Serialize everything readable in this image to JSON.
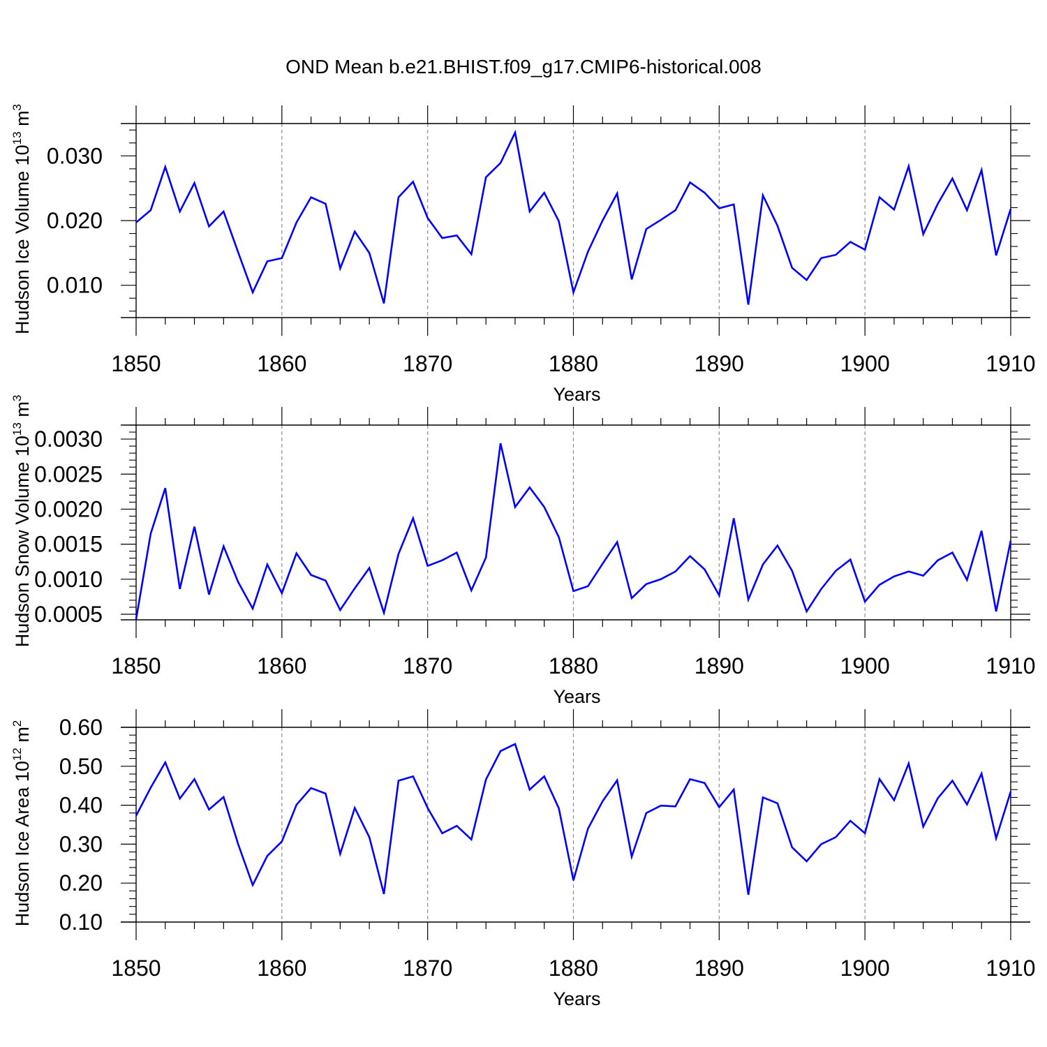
{
  "title": "OND Mean b.e21.BHIST.f09_g17.CMIP6-historical.008",
  "colors": {
    "line": "#0000ff",
    "frame": "#000000",
    "grid": "#8c8c8c"
  },
  "chart_data": [
    {
      "type": "line",
      "title": "",
      "xlabel": "Years",
      "ylabel": "Hudson Ice Volume 10",
      "ylabel_exp": "13",
      "ylabel_unit": " m",
      "ylabel_unit_exp": "3",
      "xlim": [
        1850,
        1910
      ],
      "ylim": [
        0.005,
        0.035
      ],
      "x_ticks": [
        1850,
        1860,
        1870,
        1880,
        1890,
        1900,
        1910
      ],
      "x_tick_labels": [
        "1850",
        "1860",
        "1870",
        "1880",
        "1890",
        "1900",
        "1910"
      ],
      "y_ticks": [
        0.01,
        0.02,
        0.03
      ],
      "y_tick_labels": [
        "0.010",
        "0.020",
        "0.030"
      ],
      "y_minor_step": 0.002,
      "grid": "x-dashed",
      "series": [
        {
          "name": "Hudson Ice Volume",
          "color": "#0000ff",
          "x": [
            1850,
            1851,
            1852,
            1853,
            1854,
            1855,
            1856,
            1857,
            1858,
            1859,
            1860,
            1861,
            1862,
            1863,
            1864,
            1865,
            1866,
            1867,
            1868,
            1869,
            1870,
            1871,
            1872,
            1873,
            1874,
            1875,
            1876,
            1877,
            1878,
            1879,
            1880,
            1881,
            1882,
            1883,
            1884,
            1885,
            1886,
            1887,
            1888,
            1889,
            1890,
            1891,
            1892,
            1893,
            1894,
            1895,
            1896,
            1897,
            1898,
            1899,
            1900,
            1901,
            1902,
            1903,
            1904,
            1905,
            1906,
            1907,
            1908,
            1909,
            1910
          ],
          "values": [
            0.0197,
            0.0216,
            0.0283,
            0.0214,
            0.0258,
            0.0191,
            0.0214,
            0.0151,
            0.0089,
            0.0137,
            0.0142,
            0.0197,
            0.0236,
            0.0226,
            0.0126,
            0.0183,
            0.015,
            0.0072,
            0.0236,
            0.026,
            0.0204,
            0.0173,
            0.0177,
            0.0148,
            0.0267,
            0.0289,
            0.0336,
            0.0214,
            0.0243,
            0.0199,
            0.0089,
            0.0152,
            0.02,
            0.0242,
            0.0109,
            0.0187,
            0.0201,
            0.0216,
            0.0259,
            0.0243,
            0.0219,
            0.0225,
            0.007,
            0.0239,
            0.0192,
            0.0127,
            0.0108,
            0.0142,
            0.0147,
            0.0167,
            0.0155,
            0.0236,
            0.0217,
            0.0284,
            0.0179,
            0.0226,
            0.0265,
            0.0216,
            0.0278,
            0.0146,
            0.0218
          ]
        }
      ]
    },
    {
      "type": "line",
      "title": "",
      "xlabel": "Years",
      "ylabel": "Hudson Snow Volume 10",
      "ylabel_exp": "13",
      "ylabel_unit": " m",
      "ylabel_unit_exp": "3",
      "xlim": [
        1850,
        1910
      ],
      "ylim": [
        0.00042,
        0.0032
      ],
      "x_ticks": [
        1850,
        1860,
        1870,
        1880,
        1890,
        1900,
        1910
      ],
      "x_tick_labels": [
        "1850",
        "1860",
        "1870",
        "1880",
        "1890",
        "1900",
        "1910"
      ],
      "y_ticks": [
        0.0005,
        0.001,
        0.0015,
        0.002,
        0.0025,
        0.003
      ],
      "y_tick_labels": [
        "0.0005",
        "0.0010",
        "0.0015",
        "0.0020",
        "0.0025",
        "0.0030"
      ],
      "y_minor_step": 0.0001,
      "grid": "x-dashed",
      "series": [
        {
          "name": "Hudson Snow Volume",
          "color": "#0000ff",
          "x": [
            1850,
            1851,
            1852,
            1853,
            1854,
            1855,
            1856,
            1857,
            1858,
            1859,
            1860,
            1861,
            1862,
            1863,
            1864,
            1865,
            1866,
            1867,
            1868,
            1869,
            1870,
            1871,
            1872,
            1873,
            1874,
            1875,
            1876,
            1877,
            1878,
            1879,
            1880,
            1881,
            1882,
            1883,
            1884,
            1885,
            1886,
            1887,
            1888,
            1889,
            1890,
            1891,
            1892,
            1893,
            1894,
            1895,
            1896,
            1897,
            1898,
            1899,
            1900,
            1901,
            1902,
            1903,
            1904,
            1905,
            1906,
            1907,
            1908,
            1909,
            1910
          ],
          "values": [
            0.00043,
            0.00165,
            0.0023,
            0.00086,
            0.00175,
            0.00078,
            0.00147,
            0.00096,
            0.00058,
            0.00121,
            0.0008,
            0.00137,
            0.00106,
            0.00098,
            0.00056,
            0.00087,
            0.00116,
            0.00052,
            0.00136,
            0.00187,
            0.00119,
            0.00127,
            0.00138,
            0.00084,
            0.00131,
            0.00294,
            0.00203,
            0.00231,
            0.00203,
            0.0016,
            0.00083,
            0.0009,
            0.00122,
            0.00153,
            0.00073,
            0.00093,
            0.001,
            0.00111,
            0.00133,
            0.00114,
            0.00077,
            0.00187,
            0.00071,
            0.00121,
            0.00148,
            0.00112,
            0.00054,
            0.00086,
            0.00112,
            0.00128,
            0.00068,
            0.00092,
            0.00104,
            0.00111,
            0.00105,
            0.00127,
            0.00138,
            0.00099,
            0.00169,
            0.00054,
            0.00155
          ]
        }
      ]
    },
    {
      "type": "line",
      "title": "",
      "xlabel": "Years",
      "ylabel": "Hudson Ice Area 10",
      "ylabel_exp": "12",
      "ylabel_unit": " m",
      "ylabel_unit_exp": "2",
      "xlim": [
        1850,
        1910
      ],
      "ylim": [
        0.1,
        0.6
      ],
      "x_ticks": [
        1850,
        1860,
        1870,
        1880,
        1890,
        1900,
        1910
      ],
      "x_tick_labels": [
        "1850",
        "1860",
        "1870",
        "1880",
        "1890",
        "1900",
        "1910"
      ],
      "y_ticks": [
        0.1,
        0.2,
        0.3,
        0.4,
        0.5,
        0.6
      ],
      "y_tick_labels": [
        "0.10",
        "0.20",
        "0.30",
        "0.40",
        "0.50",
        "0.60"
      ],
      "y_minor_step": 0.02,
      "grid": "x-dashed",
      "series": [
        {
          "name": "Hudson Ice Area",
          "color": "#0000ff",
          "x": [
            1850,
            1851,
            1852,
            1853,
            1854,
            1855,
            1856,
            1857,
            1858,
            1859,
            1860,
            1861,
            1862,
            1863,
            1864,
            1865,
            1866,
            1867,
            1868,
            1869,
            1870,
            1871,
            1872,
            1873,
            1874,
            1875,
            1876,
            1877,
            1878,
            1879,
            1880,
            1881,
            1882,
            1883,
            1884,
            1885,
            1886,
            1887,
            1888,
            1889,
            1890,
            1891,
            1892,
            1893,
            1894,
            1895,
            1896,
            1897,
            1898,
            1899,
            1900,
            1901,
            1902,
            1903,
            1904,
            1905,
            1906,
            1907,
            1908,
            1909,
            1910
          ],
          "values": [
            0.373,
            0.445,
            0.51,
            0.417,
            0.467,
            0.389,
            0.421,
            0.3,
            0.195,
            0.27,
            0.307,
            0.401,
            0.444,
            0.43,
            0.275,
            0.393,
            0.318,
            0.172,
            0.463,
            0.474,
            0.393,
            0.328,
            0.347,
            0.312,
            0.466,
            0.539,
            0.557,
            0.44,
            0.474,
            0.392,
            0.207,
            0.34,
            0.41,
            0.464,
            0.268,
            0.38,
            0.399,
            0.397,
            0.467,
            0.457,
            0.395,
            0.44,
            0.17,
            0.42,
            0.405,
            0.292,
            0.256,
            0.3,
            0.318,
            0.36,
            0.328,
            0.467,
            0.413,
            0.507,
            0.345,
            0.418,
            0.463,
            0.402,
            0.481,
            0.315,
            0.435
          ]
        }
      ]
    }
  ]
}
